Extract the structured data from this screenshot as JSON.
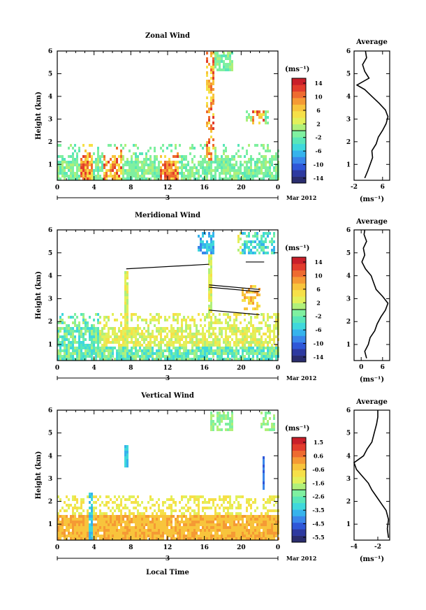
{
  "panels": [
    {
      "title": "Zonal Wind",
      "ylabel": "Height (km)",
      "cbar_unit": "(ms⁻¹)",
      "cbar_ticks": [
        "14",
        "10",
        "6",
        "2",
        "-2",
        "-6",
        "-10",
        "-14"
      ],
      "avg_title": "Average",
      "avg_unit": "(ms⁻¹)",
      "avg_xticks": [
        "-2",
        "6"
      ],
      "avg_xlim": [
        -2,
        8
      ]
    },
    {
      "title": "Meridional Wind",
      "ylabel": "Height (km)",
      "cbar_unit": "(ms⁻¹)",
      "cbar_ticks": [
        "14",
        "10",
        "6",
        "2",
        "-2",
        "-6",
        "-10",
        "-14"
      ],
      "avg_title": "Average",
      "avg_unit": "(ms⁻¹)",
      "avg_xticks": [
        "0",
        "6"
      ],
      "avg_xlim": [
        -2,
        8
      ]
    },
    {
      "title": "Vertical Wind",
      "ylabel": "Height (km)",
      "cbar_unit": "(ms⁻¹)",
      "cbar_ticks": [
        "1.5",
        "0.6",
        "-0.6",
        "-1.6",
        "-2.6",
        "-3.5",
        "-4.5",
        "-5.5"
      ],
      "avg_title": "Average",
      "avg_unit": "(ms⁻¹)",
      "avg_xticks": [
        "-4",
        "-2"
      ],
      "avg_xlim": [
        -4,
        -1
      ]
    }
  ],
  "x_ticks": [
    "0",
    "4",
    "8",
    "12",
    "16",
    "20",
    "0"
  ],
  "y_ticks": [
    "1",
    "2",
    "3",
    "4",
    "5",
    "6"
  ],
  "day_label": "3",
  "date_label": "Mar 2012",
  "xlabel": "Local Time",
  "colors": [
    "#2a2d6e",
    "#2e3aa0",
    "#2f57d8",
    "#3a86ea",
    "#36b3ec",
    "#3fd8dc",
    "#59e6b8",
    "#7ff0a0",
    "#b0f07a",
    "#e3f05a",
    "#f6e048",
    "#f8c43c",
    "#f59a34",
    "#ee6b30",
    "#e23c2c",
    "#c91f2a"
  ],
  "chart_data": [
    {
      "type": "heatmap",
      "title": "Zonal Wind",
      "ylabel": "Height (km)",
      "xlim": [
        0,
        24
      ],
      "ylim": [
        0.3,
        6
      ],
      "colorbar_range": [
        -16,
        16
      ],
      "average_profile": {
        "title": "Average",
        "xlim": [
          -2,
          8
        ],
        "points": [
          [
            1.0,
            0.4
          ],
          [
            1.8,
            0.7
          ],
          [
            2.5,
            1.0
          ],
          [
            3.2,
            1.3
          ],
          [
            3.0,
            1.6
          ],
          [
            4.2,
            1.9
          ],
          [
            4.8,
            2.2
          ],
          [
            6.0,
            2.5
          ],
          [
            7.0,
            2.8
          ],
          [
            7.5,
            3.1
          ],
          [
            6.8,
            3.4
          ],
          [
            5.0,
            3.7
          ],
          [
            3.0,
            4.0
          ],
          [
            1.0,
            4.3
          ],
          [
            -1.2,
            4.5
          ],
          [
            2.2,
            4.8
          ],
          [
            1.0,
            5.1
          ],
          [
            0.4,
            5.4
          ],
          [
            1.5,
            5.7
          ],
          [
            1.2,
            6.0
          ]
        ]
      }
    },
    {
      "type": "heatmap",
      "title": "Meridional Wind",
      "ylabel": "Height (km)",
      "xlim": [
        0,
        24
      ],
      "ylim": [
        0.3,
        6
      ],
      "colorbar_range": [
        -16,
        16
      ],
      "average_profile": {
        "title": "Average",
        "xlim": [
          -2,
          8
        ],
        "points": [
          [
            1.5,
            0.4
          ],
          [
            1.0,
            0.7
          ],
          [
            2.0,
            1.0
          ],
          [
            2.5,
            1.3
          ],
          [
            3.8,
            1.6
          ],
          [
            4.5,
            1.9
          ],
          [
            5.5,
            2.2
          ],
          [
            6.8,
            2.5
          ],
          [
            7.5,
            2.8
          ],
          [
            6.0,
            3.1
          ],
          [
            4.2,
            3.4
          ],
          [
            3.5,
            3.7
          ],
          [
            2.8,
            4.0
          ],
          [
            1.2,
            4.3
          ],
          [
            0.2,
            4.6
          ],
          [
            1.0,
            4.9
          ],
          [
            0.6,
            5.2
          ],
          [
            1.5,
            5.5
          ],
          [
            0.8,
            5.8
          ],
          [
            1.0,
            6.0
          ]
        ]
      }
    },
    {
      "type": "heatmap",
      "title": "Vertical Wind",
      "ylabel": "Height (km)",
      "xlim": [
        0,
        24
      ],
      "ylim": [
        0.3,
        6
      ],
      "colorbar_range": [
        -6,
        2
      ],
      "average_profile": {
        "title": "Average",
        "xlim": [
          -4,
          -1
        ],
        "points": [
          [
            -1.1,
            0.4
          ],
          [
            -1.2,
            0.8
          ],
          [
            -1.1,
            1.2
          ],
          [
            -1.3,
            1.6
          ],
          [
            -1.7,
            1.9
          ],
          [
            -2.1,
            2.2
          ],
          [
            -2.5,
            2.5
          ],
          [
            -2.8,
            2.8
          ],
          [
            -3.3,
            3.1
          ],
          [
            -3.8,
            3.4
          ],
          [
            -4.0,
            3.7
          ],
          [
            -3.2,
            4.0
          ],
          [
            -2.9,
            4.3
          ],
          [
            -2.5,
            4.6
          ],
          [
            -2.3,
            5.0
          ],
          [
            -2.1,
            5.4
          ],
          [
            -2.0,
            5.7
          ],
          [
            -2.0,
            6.0
          ]
        ]
      }
    }
  ]
}
